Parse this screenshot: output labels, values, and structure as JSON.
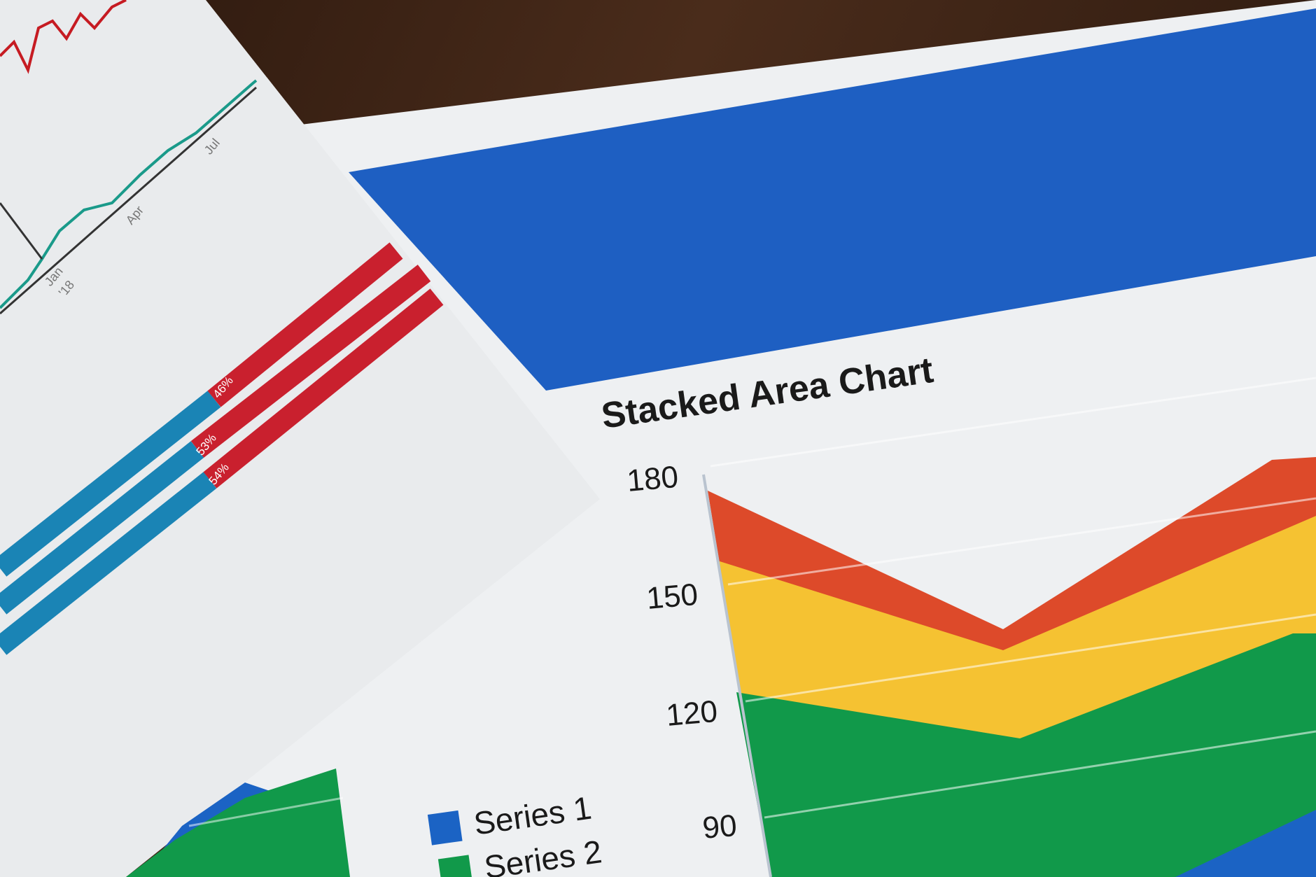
{
  "colors": {
    "wood": "#3b2417",
    "paper": "#eeeff1",
    "banner_blue": "#1e5fc2",
    "series_red": "#dd4a2a",
    "series_yellow": "#f5c232",
    "series_green": "#11994a",
    "series_blue": "#1b63c4",
    "bar_red": "#c9202e",
    "bar_teal": "#1a84b5",
    "line_teal": "#1a9a8a",
    "line_red": "#c61b22"
  },
  "main_sheet": {
    "title": "Stacked Area Chart",
    "y_ticks": [
      "180",
      "150",
      "120",
      "90"
    ]
  },
  "left_sheet": {
    "line_chart_ticks": [
      "Jan",
      "'18",
      "Apr",
      "Jul"
    ],
    "bar_labels": [
      "46%",
      "53%",
      "54%"
    ],
    "legend": [
      "Series 1",
      "Series 2"
    ]
  }
}
